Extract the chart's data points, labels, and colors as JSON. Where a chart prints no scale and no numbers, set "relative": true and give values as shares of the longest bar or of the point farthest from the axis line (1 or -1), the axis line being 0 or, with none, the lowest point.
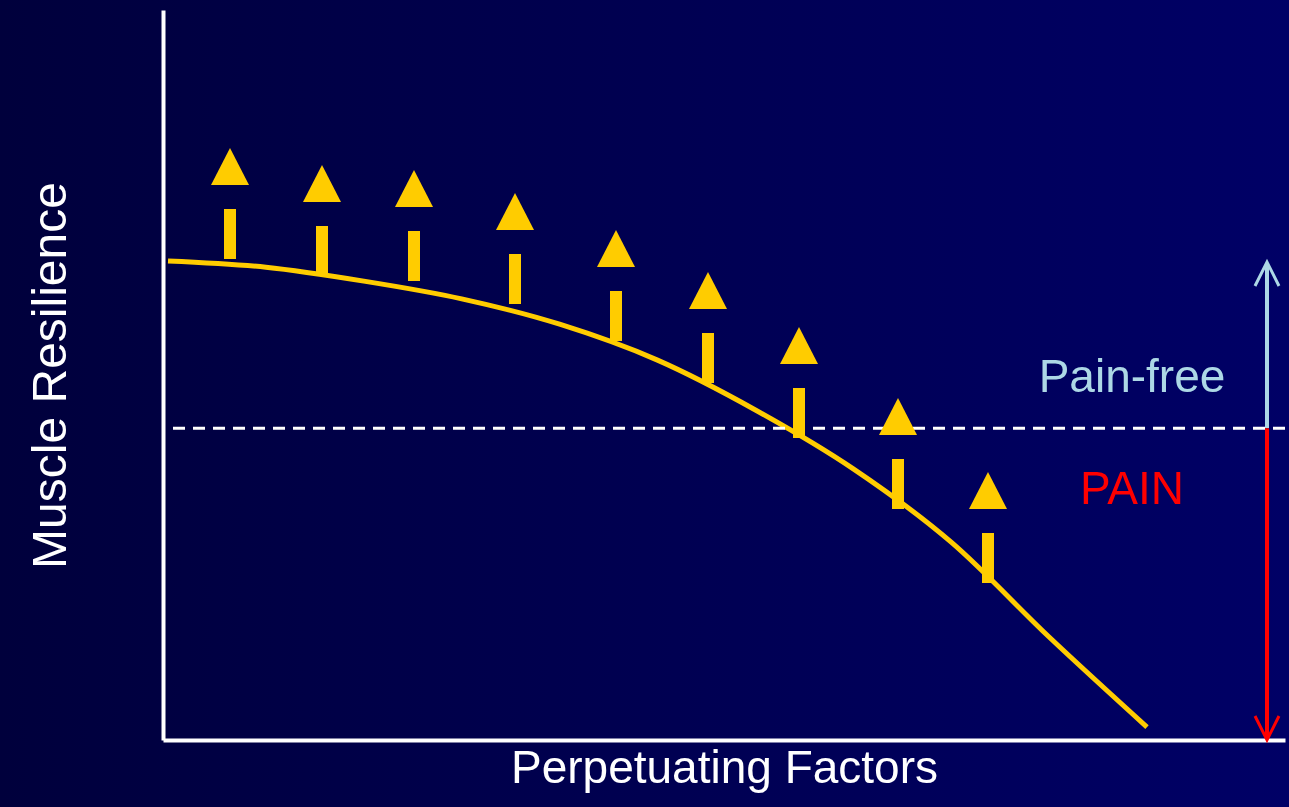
{
  "chart_data": {
    "type": "line",
    "relative": true,
    "xlabel": "Perpetuating Factors",
    "ylabel": "Muscle Resilience",
    "categories": [
      null,
      null,
      null,
      null,
      null,
      null,
      null,
      null,
      null,
      null,
      null
    ],
    "series": [
      {
        "color": "#ffcc00",
        "values": [
          1.0,
          0.987,
          0.958,
          0.921,
          0.868,
          0.793,
          0.689,
          0.566,
          0.413,
          0.215,
          0.027
        ]
      }
    ],
    "ref_lines": [
      {
        "axis": "y",
        "value": 0.651,
        "color": "#ffffff",
        "line_style": "dashed"
      }
    ],
    "annotations": [
      "Pain-free",
      "PAIN"
    ]
  }
}
